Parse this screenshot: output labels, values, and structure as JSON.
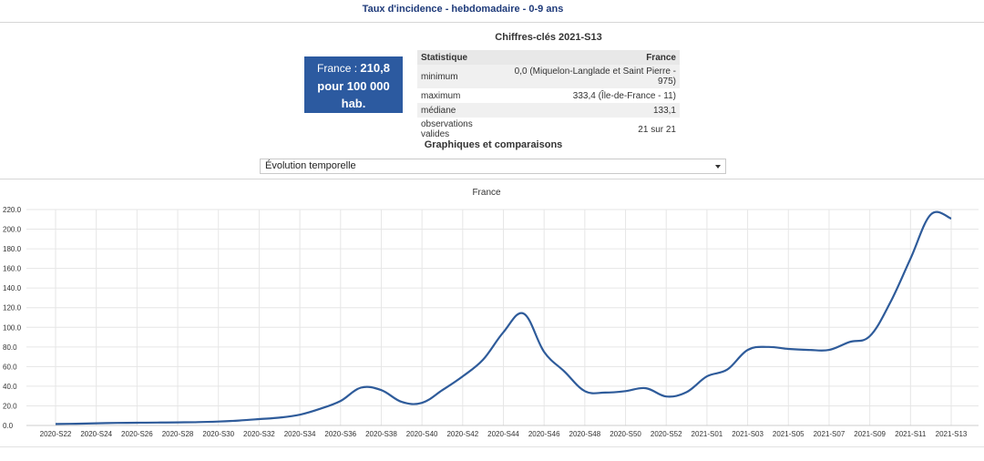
{
  "page": {
    "title": "Taux d'incidence - hebdomadaire - 0-9 ans"
  },
  "kpi": {
    "prefix": "France : ",
    "value": "210,8",
    "line2": "pour 100 000",
    "line3": "hab."
  },
  "stats": {
    "title": "Chiffres-clés 2021-S13",
    "header": {
      "col1": "Statistique",
      "col2": "France"
    },
    "rows": [
      {
        "label": "minimum",
        "value": "0,0 (Miquelon-Langlade et Saint Pierre - 975)"
      },
      {
        "label": "maximum",
        "value": "333,4 (Île-de-France - 11)"
      },
      {
        "label": "médiane",
        "value": "133,1"
      },
      {
        "label": "observations valides",
        "value": "21 sur 21"
      }
    ]
  },
  "comparisons": {
    "title": "Graphiques et comparaisons",
    "select_value": "Évolution temporelle"
  },
  "colors": {
    "line": "#2e5b9a",
    "kpi_bg": "#2c5aa0",
    "title": "#1f3b7a"
  },
  "chart_data": {
    "type": "line",
    "title": "France",
    "ylim": [
      0,
      220
    ],
    "y_ticks": [
      "0.0",
      "20.0",
      "40.0",
      "60.0",
      "80.0",
      "100.0",
      "120.0",
      "140.0",
      "160.0",
      "180.0",
      "200.0",
      "220.0"
    ],
    "grid": true,
    "x_tick_labels": [
      "2020-S22",
      "2020-S24",
      "2020-S26",
      "2020-S28",
      "2020-S30",
      "2020-S32",
      "2020-S34",
      "2020-S36",
      "2020-S38",
      "2020-S40",
      "2020-S42",
      "2020-S44",
      "2020-S46",
      "2020-S48",
      "2020-S50",
      "2020-S52",
      "2021-S01",
      "2021-S03",
      "2021-S05",
      "2021-S07",
      "2021-S09",
      "2021-S11",
      "2021-S13"
    ],
    "x": [
      "2020-S22",
      "2020-S23",
      "2020-S24",
      "2020-S25",
      "2020-S26",
      "2020-S27",
      "2020-S28",
      "2020-S29",
      "2020-S30",
      "2020-S31",
      "2020-S32",
      "2020-S33",
      "2020-S34",
      "2020-S35",
      "2020-S36",
      "2020-S37",
      "2020-S38",
      "2020-S39",
      "2020-S40",
      "2020-S41",
      "2020-S42",
      "2020-S43",
      "2020-S44",
      "2020-S45",
      "2020-S46",
      "2020-S47",
      "2020-S48",
      "2020-S49",
      "2020-S50",
      "2020-S51",
      "2020-S52",
      "2020-S53",
      "2021-S01",
      "2021-S02",
      "2021-S03",
      "2021-S04",
      "2021-S05",
      "2021-S06",
      "2021-S07",
      "2021-S08",
      "2021-S09",
      "2021-S10",
      "2021-S11",
      "2021-S12",
      "2021-S13"
    ],
    "series": [
      {
        "values": [
          1.5,
          1.8,
          2.2,
          2.6,
          2.8,
          3.0,
          3.2,
          3.4,
          4.0,
          5.0,
          6.5,
          8.0,
          11.0,
          17.0,
          25.0,
          38.5,
          36.0,
          24.0,
          23.0,
          36.0,
          50.0,
          67.0,
          95.0,
          114.0,
          75.0,
          55.0,
          35.0,
          33.5,
          35.0,
          38.0,
          29.5,
          34.0,
          50.0,
          57.0,
          77.0,
          80.0,
          78.0,
          77.0,
          77.0,
          85.0,
          91.0,
          125.0,
          170.0,
          215.0,
          210.8
        ]
      }
    ]
  }
}
